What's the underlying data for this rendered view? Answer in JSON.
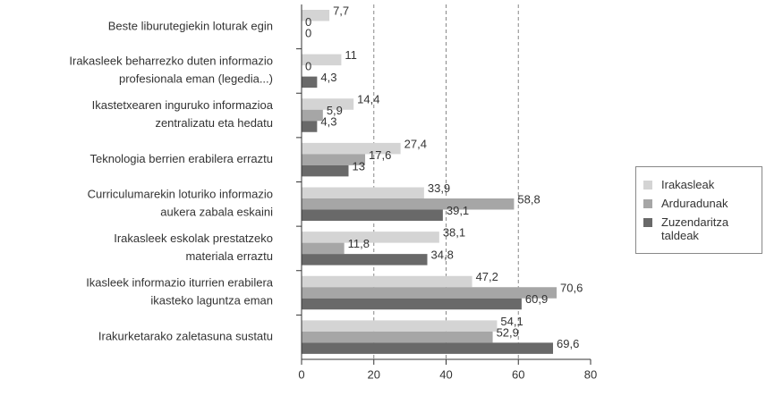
{
  "chart_data": {
    "type": "bar",
    "orientation": "horizontal",
    "categories": [
      "Beste liburutegiekin loturak egin",
      "Irakasleek beharrezko duten informazio\nprofesionala eman (legedia...)",
      "Ikastetxearen inguruko informazioa\nzentralizatu eta hedatu",
      "Teknologia berrien erabilera erraztu",
      "Curriculumarekin loturiko informazio\naukera zabala eskaini",
      "Irakasleek eskolak prestatzeko\nmateriala erraztu",
      "Ikasleek informazio iturrien erabilera\nikasteko laguntza eman",
      "Irakurketarako zaletasuna sustatu"
    ],
    "series": [
      {
        "name": "Irakasleak",
        "color": "#d4d4d4",
        "values": [
          7.7,
          11,
          14.4,
          27.4,
          33.9,
          38.1,
          47.2,
          54.1
        ],
        "value_labels": [
          "7,7",
          "11",
          "14,4",
          "27,4",
          "33,9",
          "38,1",
          "47,2",
          "54,1"
        ]
      },
      {
        "name": "Arduradunak",
        "color": "#a6a6a6",
        "values": [
          0,
          0,
          5.9,
          17.6,
          58.8,
          11.8,
          70.6,
          52.9
        ],
        "value_labels": [
          "0",
          "0",
          "5,9",
          "17,6",
          "58,8",
          "11,8",
          "70,6",
          "52,9"
        ]
      },
      {
        "name": "Zuzendaritza taldeak",
        "color": "#696969",
        "values": [
          0,
          4.3,
          4.3,
          13,
          39.1,
          34.8,
          60.9,
          69.6
        ],
        "value_labels": [
          "0",
          "4,3",
          "4,3",
          "13",
          "39,1",
          "34,8",
          "60,9",
          "69,6"
        ]
      }
    ],
    "xlim": [
      0,
      80
    ],
    "xticks": [
      0,
      20,
      40,
      60,
      80
    ],
    "grid": true,
    "legend": "right"
  }
}
